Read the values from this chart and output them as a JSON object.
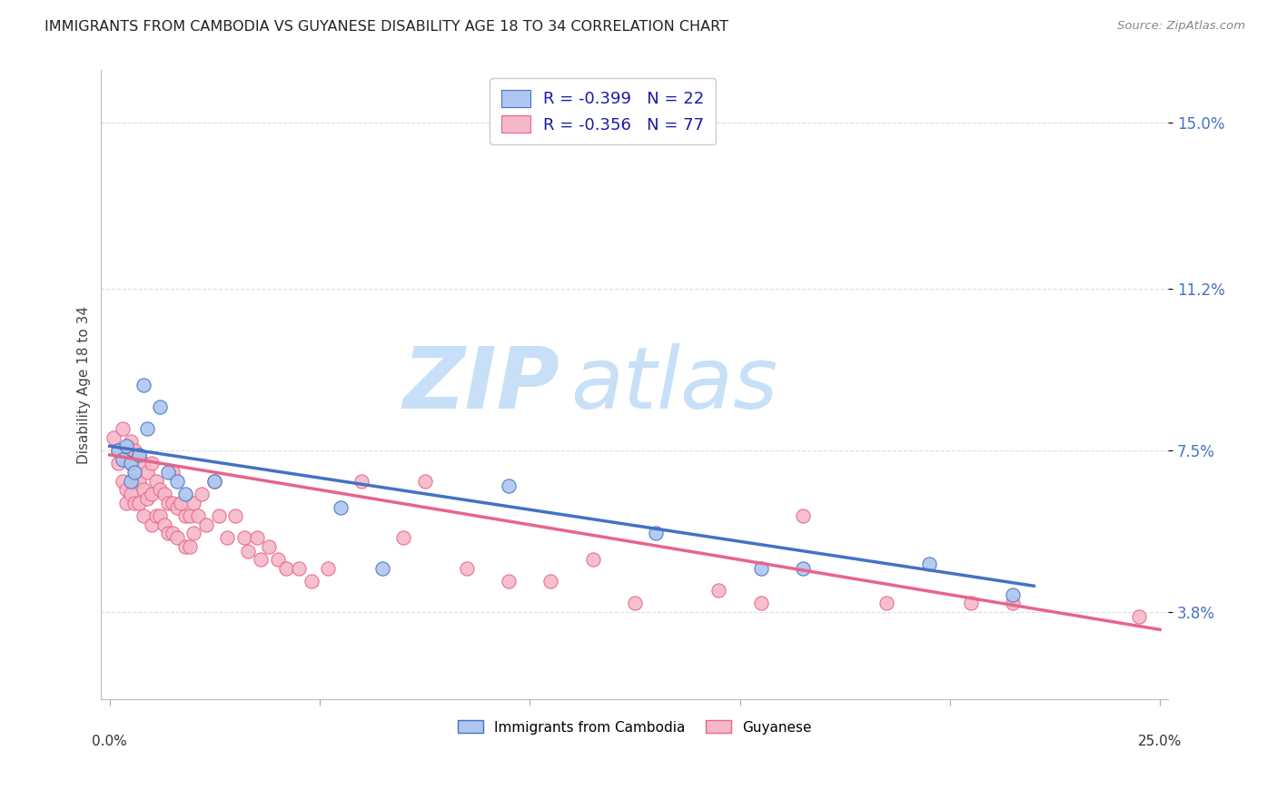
{
  "title": "IMMIGRANTS FROM CAMBODIA VS GUYANESE DISABILITY AGE 18 TO 34 CORRELATION CHART",
  "source": "Source: ZipAtlas.com",
  "ylabel": "Disability Age 18 to 34",
  "legend_label1": "Immigrants from Cambodia",
  "legend_label2": "Guyanese",
  "r1": -0.399,
  "n1": 22,
  "r2": -0.356,
  "n2": 77,
  "color1": "#aec6f0",
  "color2": "#f5b8c8",
  "line_color1": "#4472c4",
  "line_color2": "#e8648a",
  "watermark_color": "#c8dff8",
  "background_color": "#ffffff",
  "ytick_vals": [
    0.038,
    0.075,
    0.112,
    0.15
  ],
  "ytick_labels": [
    "3.8%",
    "7.5%",
    "11.2%",
    "15.0%"
  ],
  "xlim": [
    0.0,
    0.25
  ],
  "ylim": [
    0.018,
    0.162
  ],
  "line1_x": [
    0.0,
    0.22
  ],
  "line1_y": [
    0.076,
    0.044
  ],
  "line2_x": [
    0.0,
    0.25
  ],
  "line2_y": [
    0.074,
    0.034
  ],
  "cam_x": [
    0.002,
    0.003,
    0.004,
    0.005,
    0.005,
    0.006,
    0.007,
    0.008,
    0.009,
    0.012,
    0.014,
    0.016,
    0.018,
    0.025,
    0.055,
    0.065,
    0.095,
    0.13,
    0.155,
    0.165,
    0.195,
    0.215
  ],
  "cam_y": [
    0.075,
    0.073,
    0.076,
    0.072,
    0.068,
    0.07,
    0.074,
    0.09,
    0.08,
    0.085,
    0.07,
    0.068,
    0.065,
    0.068,
    0.062,
    0.048,
    0.067,
    0.056,
    0.048,
    0.048,
    0.049,
    0.042
  ],
  "guy_x": [
    0.001,
    0.002,
    0.002,
    0.003,
    0.003,
    0.004,
    0.004,
    0.004,
    0.005,
    0.005,
    0.005,
    0.006,
    0.006,
    0.006,
    0.007,
    0.007,
    0.007,
    0.008,
    0.008,
    0.008,
    0.009,
    0.009,
    0.01,
    0.01,
    0.01,
    0.011,
    0.011,
    0.012,
    0.012,
    0.013,
    0.013,
    0.014,
    0.014,
    0.015,
    0.015,
    0.015,
    0.016,
    0.016,
    0.017,
    0.018,
    0.018,
    0.019,
    0.019,
    0.02,
    0.02,
    0.021,
    0.022,
    0.023,
    0.025,
    0.026,
    0.028,
    0.03,
    0.032,
    0.033,
    0.035,
    0.036,
    0.038,
    0.04,
    0.042,
    0.045,
    0.048,
    0.052,
    0.06,
    0.07,
    0.075,
    0.085,
    0.095,
    0.105,
    0.115,
    0.125,
    0.145,
    0.155,
    0.165,
    0.185,
    0.205,
    0.215,
    0.245
  ],
  "guy_y": [
    0.078,
    0.075,
    0.072,
    0.08,
    0.068,
    0.073,
    0.066,
    0.063,
    0.077,
    0.072,
    0.065,
    0.075,
    0.069,
    0.063,
    0.074,
    0.068,
    0.063,
    0.072,
    0.066,
    0.06,
    0.07,
    0.064,
    0.072,
    0.065,
    0.058,
    0.068,
    0.06,
    0.066,
    0.06,
    0.065,
    0.058,
    0.063,
    0.056,
    0.07,
    0.063,
    0.056,
    0.062,
    0.055,
    0.063,
    0.06,
    0.053,
    0.06,
    0.053,
    0.063,
    0.056,
    0.06,
    0.065,
    0.058,
    0.068,
    0.06,
    0.055,
    0.06,
    0.055,
    0.052,
    0.055,
    0.05,
    0.053,
    0.05,
    0.048,
    0.048,
    0.045,
    0.048,
    0.068,
    0.055,
    0.068,
    0.048,
    0.045,
    0.045,
    0.05,
    0.04,
    0.043,
    0.04,
    0.06,
    0.04,
    0.04,
    0.04,
    0.037
  ]
}
